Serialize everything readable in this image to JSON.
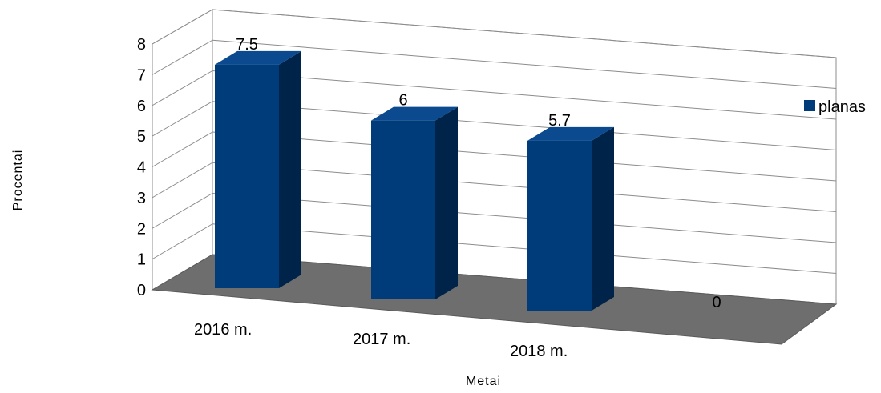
{
  "chart_data": {
    "type": "bar",
    "style": "3d-clustered-column",
    "categories": [
      "2016 m.",
      "2017 m.",
      "2018 m.",
      ""
    ],
    "series": [
      {
        "name": "planas",
        "values": [
          7.5,
          6,
          5.7,
          0
        ],
        "color": "#003b7a"
      }
    ],
    "data_labels": [
      "7.5",
      "6",
      "5.7",
      "0"
    ],
    "xlabel": "Metai",
    "ylabel": "Procentai",
    "ylim": [
      0,
      8
    ],
    "yticks": [
      "0",
      "1",
      "2",
      "3",
      "4",
      "5",
      "6",
      "7",
      "8"
    ],
    "grid": true,
    "legend": "right",
    "floor_color": "#6e6e6e",
    "gridline_color": "#8c8c8c"
  }
}
